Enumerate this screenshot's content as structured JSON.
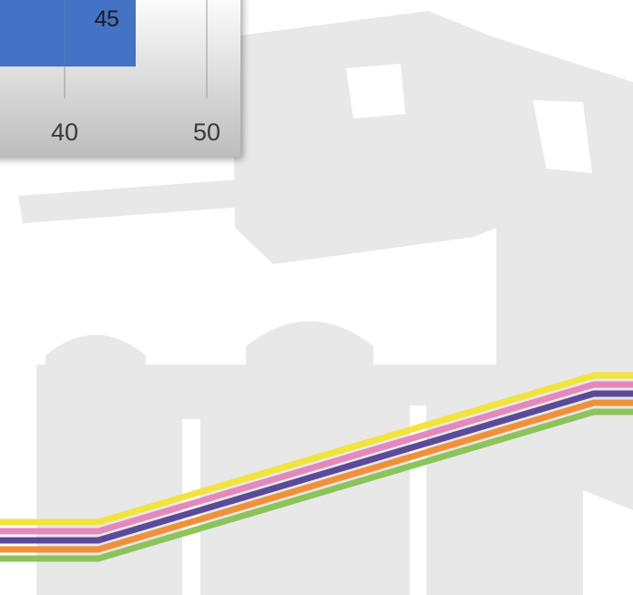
{
  "colors": {
    "background": "#ffffff",
    "watermark": "#e8e8e8",
    "panel_top": "#ffffff",
    "panel_bottom": "#bdbdbd",
    "bar": "#4472c4",
    "stripes": [
      "#f2e33d",
      "#e389bd",
      "#5b4a97",
      "#f0913a",
      "#8cc45c"
    ]
  },
  "chart_data": {
    "type": "bar",
    "orientation": "horizontal",
    "values": [
      45
    ],
    "data_labels": [
      "45"
    ],
    "xlim": [
      35,
      52
    ],
    "xticks": [
      40,
      50
    ],
    "xtick_labels": [
      "40",
      "50"
    ],
    "grid": true,
    "title": "",
    "xlabel": "",
    "ylabel": ""
  },
  "decoration": {
    "watermark_icon": "building-watermark-icon",
    "stripes_icon": "color-stripes-icon"
  }
}
